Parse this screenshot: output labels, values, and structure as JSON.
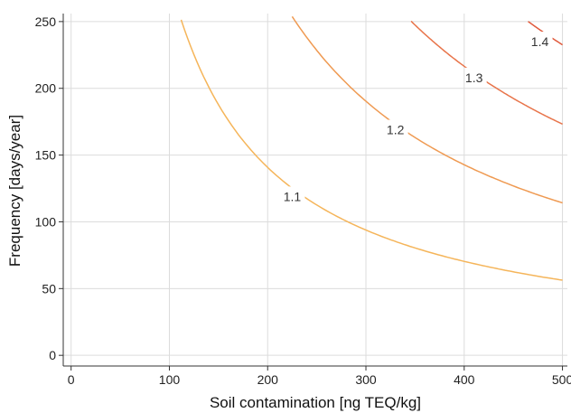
{
  "chart_data": {
    "type": "line",
    "xlabel": "Soil contamination [ng TEQ/kg]",
    "ylabel": "Frequency [days/year]",
    "xlim": [
      -8,
      505
    ],
    "ylim": [
      -8,
      256
    ],
    "xticks": [
      "0",
      "100",
      "200",
      "300",
      "400",
      "500"
    ],
    "yticks": [
      "0",
      "50",
      "100",
      "150",
      "200",
      "250"
    ],
    "grid": true,
    "series": [
      {
        "name": "1.1",
        "color": "#f5b55a",
        "k": 28150,
        "x_from": 112,
        "x_to": 500,
        "label_at": [
          225,
          119
        ]
      },
      {
        "name": "1.2",
        "color": "#ef9a52",
        "k": 57100,
        "x_from": 225,
        "x_to": 500,
        "label_at": [
          330,
          169
        ]
      },
      {
        "name": "1.3",
        "color": "#e8744a",
        "k": 86600,
        "x_from": 346,
        "x_to": 500,
        "label_at": [
          410,
          208
        ]
      },
      {
        "name": "1.4",
        "color": "#e05a3c",
        "k": 116300,
        "x_from": 465,
        "x_to": 500,
        "label_at": [
          477,
          235
        ]
      }
    ]
  }
}
